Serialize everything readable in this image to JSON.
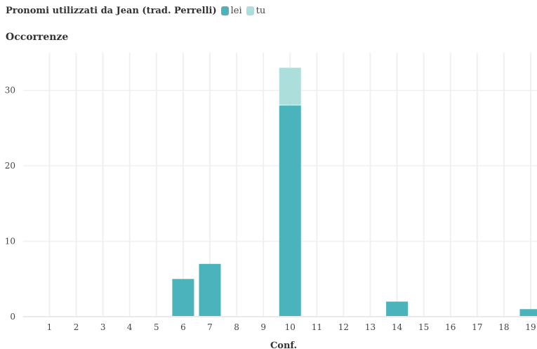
{
  "chart_data": {
    "type": "bar",
    "stacked": true,
    "title": "Pronomi utilizzati da Jean (trad. Perrelli)",
    "ylabel": "Occorrenze",
    "xlabel": "Conf.",
    "categories": [
      "1",
      "2",
      "3",
      "4",
      "5",
      "6",
      "7",
      "8",
      "9",
      "10",
      "11",
      "12",
      "13",
      "14",
      "15",
      "16",
      "17",
      "18",
      "19"
    ],
    "series": [
      {
        "name": "lei",
        "color": "#4ab3bc",
        "values": [
          0,
          0,
          0,
          0,
          0,
          5,
          7,
          0,
          0,
          28,
          0,
          0,
          0,
          2,
          0,
          0,
          0,
          0,
          1
        ]
      },
      {
        "name": "tu",
        "color": "#acdfdb",
        "values": [
          0,
          0,
          0,
          0,
          0,
          0,
          0,
          0,
          0,
          5,
          0,
          0,
          0,
          0,
          0,
          0,
          0,
          0,
          0
        ]
      }
    ],
    "ylim": [
      0,
      35
    ],
    "yticks": [
      0,
      10,
      20,
      30
    ],
    "grid": true,
    "legend_position": "top-left"
  }
}
